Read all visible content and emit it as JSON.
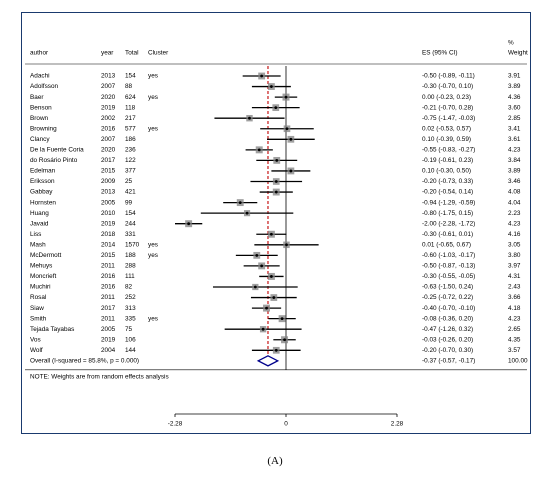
{
  "headers": {
    "author": "author",
    "year": "year",
    "total": "Total",
    "cluster": "Cluster",
    "es": "ES (95% CI)",
    "weight_line1": "%",
    "weight_line2": "Weight"
  },
  "note": "NOTE: Weights are from random effects analysis",
  "caption": "(A)",
  "colors": {
    "frame": "#1a3a6e",
    "null_line": "#000000",
    "overall_line": "#c00000",
    "diamond": "#00008b",
    "marker": "#808080"
  },
  "chart_data": {
    "type": "forest",
    "x_ticks": [
      {
        "value": -2.28,
        "label": "-2.28"
      },
      {
        "value": 0,
        "label": "0"
      },
      {
        "value": 2.28,
        "label": "2.28"
      }
    ],
    "xlim": [
      -2.28,
      2.28
    ],
    "reference_line": 0,
    "studies": [
      {
        "author": "Adachi",
        "year": "2013",
        "total": "154",
        "cluster": "yes",
        "es": -0.5,
        "lo": -0.89,
        "hi": -0.11,
        "ci_text": "-0.50 (-0.89, -0.11)",
        "weight": "3.91"
      },
      {
        "author": "Adolfsson",
        "year": "2007",
        "total": "88",
        "cluster": "",
        "es": -0.3,
        "lo": -0.7,
        "hi": 0.1,
        "ci_text": "-0.30 (-0.70, 0.10)",
        "weight": "3.89"
      },
      {
        "author": "Baer",
        "year": "2020",
        "total": "624",
        "cluster": "yes",
        "es": 0.0,
        "lo": -0.23,
        "hi": 0.23,
        "ci_text": "0.00 (-0.23, 0.23)",
        "weight": "4.36"
      },
      {
        "author": "Benson",
        "year": "2019",
        "total": "118",
        "cluster": "",
        "es": -0.21,
        "lo": -0.7,
        "hi": 0.28,
        "ci_text": "-0.21 (-0.70, 0.28)",
        "weight": "3.60"
      },
      {
        "author": "Brown",
        "year": "2002",
        "total": "217",
        "cluster": "",
        "es": -0.75,
        "lo": -1.47,
        "hi": -0.03,
        "ci_text": "-0.75 (-1.47, -0.03)",
        "weight": "2.85"
      },
      {
        "author": "Browning",
        "year": "2016",
        "total": "577",
        "cluster": "yes",
        "es": 0.02,
        "lo": -0.53,
        "hi": 0.57,
        "ci_text": "0.02 (-0.53, 0.57)",
        "weight": "3.41"
      },
      {
        "author": "Clancy",
        "year": "2007",
        "total": "186",
        "cluster": "",
        "es": 0.1,
        "lo": -0.39,
        "hi": 0.59,
        "ci_text": "0.10 (-0.39, 0.59)",
        "weight": "3.61"
      },
      {
        "author": "De la Fuente Coria",
        "year": "2020",
        "total": "236",
        "cluster": "",
        "es": -0.55,
        "lo": -0.83,
        "hi": -0.27,
        "ci_text": "-0.55 (-0.83, -0.27)",
        "weight": "4.23"
      },
      {
        "author": "do Rosário Pinto",
        "year": "2017",
        "total": "122",
        "cluster": "",
        "es": -0.19,
        "lo": -0.61,
        "hi": 0.23,
        "ci_text": "-0.19 (-0.61, 0.23)",
        "weight": "3.84"
      },
      {
        "author": "Edelman",
        "year": "2015",
        "total": "377",
        "cluster": "",
        "es": 0.1,
        "lo": -0.3,
        "hi": 0.5,
        "ci_text": "0.10 (-0.30, 0.50)",
        "weight": "3.89"
      },
      {
        "author": "Eriksson",
        "year": "2009",
        "total": "25",
        "cluster": "",
        "es": -0.2,
        "lo": -0.73,
        "hi": 0.33,
        "ci_text": "-0.20 (-0.73, 0.33)",
        "weight": "3.46"
      },
      {
        "author": "Gabbay",
        "year": "2013",
        "total": "421",
        "cluster": "",
        "es": -0.2,
        "lo": -0.54,
        "hi": 0.14,
        "ci_text": "-0.20 (-0.54, 0.14)",
        "weight": "4.08"
      },
      {
        "author": "Hornsten",
        "year": "2005",
        "total": "99",
        "cluster": "",
        "es": -0.94,
        "lo": -1.29,
        "hi": -0.59,
        "ci_text": "-0.94 (-1.29, -0.59)",
        "weight": "4.04"
      },
      {
        "author": "Huang",
        "year": "2010",
        "total": "154",
        "cluster": "",
        "es": -0.8,
        "lo": -1.75,
        "hi": 0.15,
        "ci_text": "-0.80 (-1.75, 0.15)",
        "weight": "2.23"
      },
      {
        "author": "Javaid",
        "year": "2019",
        "total": "244",
        "cluster": "",
        "es": -2.0,
        "lo": -2.28,
        "hi": -1.72,
        "ci_text": "-2.00 (-2.28, -1.72)",
        "weight": "4.23"
      },
      {
        "author": "Liss",
        "year": "2018",
        "total": "331",
        "cluster": "",
        "es": -0.3,
        "lo": -0.61,
        "hi": 0.01,
        "ci_text": "-0.30 (-0.61, 0.01)",
        "weight": "4.16"
      },
      {
        "author": "Mash",
        "year": "2014",
        "total": "1570",
        "cluster": "yes",
        "es": 0.01,
        "lo": -0.65,
        "hi": 0.67,
        "ci_text": "0.01 (-0.65, 0.67)",
        "weight": "3.05"
      },
      {
        "author": "McDermott",
        "year": "2015",
        "total": "188",
        "cluster": "yes",
        "es": -0.6,
        "lo": -1.03,
        "hi": -0.17,
        "ci_text": "-0.60 (-1.03, -0.17)",
        "weight": "3.80"
      },
      {
        "author": "Mehuys",
        "year": "2011",
        "total": "288",
        "cluster": "",
        "es": -0.5,
        "lo": -0.87,
        "hi": -0.13,
        "ci_text": "-0.50 (-0.87, -0.13)",
        "weight": "3.97"
      },
      {
        "author": "Moncrieft",
        "year": "2016",
        "total": "111",
        "cluster": "",
        "es": -0.3,
        "lo": -0.55,
        "hi": -0.05,
        "ci_text": "-0.30 (-0.55, -0.05)",
        "weight": "4.31"
      },
      {
        "author": "Muchiri",
        "year": "2016",
        "total": "82",
        "cluster": "",
        "es": -0.63,
        "lo": -1.5,
        "hi": 0.24,
        "ci_text": "-0.63 (-1.50, 0.24)",
        "weight": "2.43"
      },
      {
        "author": "Rosal",
        "year": "2011",
        "total": "252",
        "cluster": "",
        "es": -0.25,
        "lo": -0.72,
        "hi": 0.22,
        "ci_text": "-0.25 (-0.72, 0.22)",
        "weight": "3.66"
      },
      {
        "author": "Siaw",
        "year": "2017",
        "total": "313",
        "cluster": "",
        "es": -0.4,
        "lo": -0.7,
        "hi": -0.1,
        "ci_text": "-0.40 (-0.70, -0.10)",
        "weight": "4.18"
      },
      {
        "author": "Smith",
        "year": "2011",
        "total": "335",
        "cluster": "yes",
        "es": -0.08,
        "lo": -0.36,
        "hi": 0.2,
        "ci_text": "-0.08 (-0.36, 0.20)",
        "weight": "4.23"
      },
      {
        "author": "Tejada Tayabas",
        "year": "2005",
        "total": "75",
        "cluster": "",
        "es": -0.47,
        "lo": -1.26,
        "hi": 0.32,
        "ci_text": "-0.47 (-1.26, 0.32)",
        "weight": "2.65"
      },
      {
        "author": "Vos",
        "year": "2019",
        "total": "106",
        "cluster": "",
        "es": -0.03,
        "lo": -0.26,
        "hi": 0.2,
        "ci_text": "-0.03 (-0.26, 0.20)",
        "weight": "4.35"
      },
      {
        "author": "Wolf",
        "year": "2004",
        "total": "144",
        "cluster": "",
        "es": -0.2,
        "lo": -0.7,
        "hi": 0.3,
        "ci_text": "-0.20 (-0.70, 0.30)",
        "weight": "3.57"
      }
    ],
    "overall": {
      "label": "Overall  (I-squared = 85.8%, p = 0.000)",
      "es": -0.37,
      "lo": -0.57,
      "hi": -0.17,
      "ci_text": "-0.37 (-0.57, -0.17)",
      "weight": "100.00"
    }
  }
}
